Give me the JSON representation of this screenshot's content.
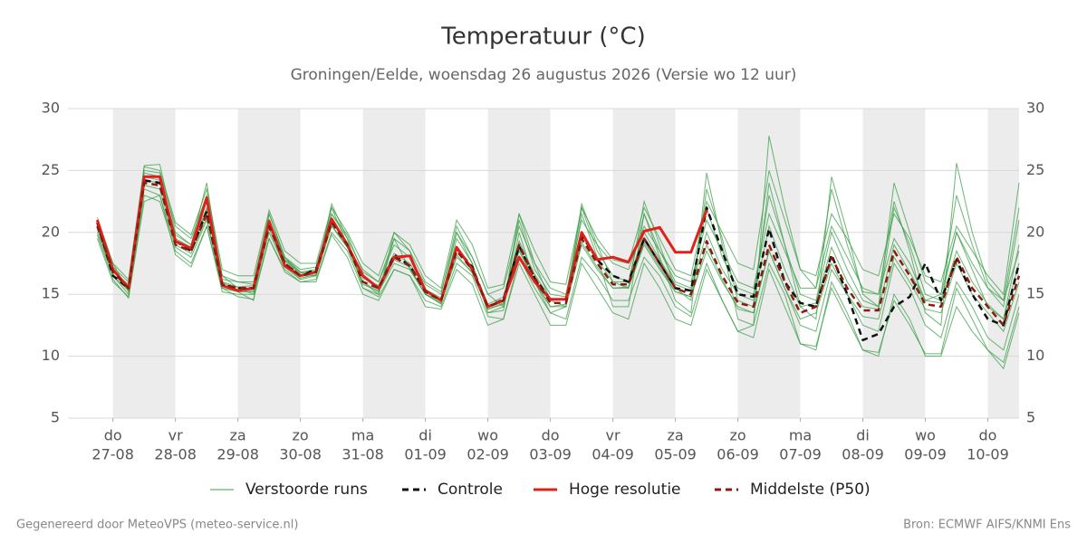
{
  "chart_data": {
    "type": "line",
    "title": "Temperatuur (°C)",
    "subtitle": "Groningen/Eelde, woensdag 26 augustus 2026 (Versie wo 12 uur)",
    "footer_left": "Gegenereerd door MeteoVPS (meteo-service.nl)",
    "footer_right": "Bron: ECMWF AIFS/KNMI Ens",
    "x": [
      -0.25,
      0,
      0.25,
      0.5,
      0.75,
      1,
      1.25,
      1.5,
      1.75,
      2,
      2.25,
      2.5,
      2.75,
      3,
      3.25,
      3.5,
      3.75,
      4,
      4.25,
      4.5,
      4.75,
      5,
      5.25,
      5.5,
      5.75,
      6,
      6.25,
      6.5,
      6.75,
      7,
      7.25,
      7.5,
      7.75,
      8,
      8.25,
      8.5,
      8.75,
      9,
      9.25,
      9.5,
      9.75,
      10,
      10.25,
      10.5,
      10.75,
      11,
      11.25,
      11.5,
      11.75,
      12,
      12.25,
      12.5,
      12.75,
      13,
      13.25,
      13.5,
      13.75,
      14,
      14.25,
      14.5
    ],
    "xlim": [
      -0.72,
      14.5
    ],
    "xticks": [
      {
        "value": 0,
        "label": "do",
        "sublabel": "27-08"
      },
      {
        "value": 1,
        "label": "vr",
        "sublabel": "28-08"
      },
      {
        "value": 2,
        "label": "za",
        "sublabel": "29-08"
      },
      {
        "value": 3,
        "label": "zo",
        "sublabel": "30-08"
      },
      {
        "value": 4,
        "label": "ma",
        "sublabel": "31-08"
      },
      {
        "value": 5,
        "label": "di",
        "sublabel": "01-09"
      },
      {
        "value": 6,
        "label": "wo",
        "sublabel": "02-09"
      },
      {
        "value": 7,
        "label": "do",
        "sublabel": "03-09"
      },
      {
        "value": 8,
        "label": "vr",
        "sublabel": "04-09"
      },
      {
        "value": 9,
        "label": "za",
        "sublabel": "05-09"
      },
      {
        "value": 10,
        "label": "zo",
        "sublabel": "06-09"
      },
      {
        "value": 11,
        "label": "ma",
        "sublabel": "07-09"
      },
      {
        "value": 12,
        "label": "di",
        "sublabel": "08-09"
      },
      {
        "value": 13,
        "label": "wo",
        "sublabel": "09-09"
      },
      {
        "value": 14,
        "label": "do",
        "sublabel": "10-09"
      }
    ],
    "ylim": [
      5,
      30
    ],
    "yticks": [
      5,
      10,
      15,
      20,
      25,
      30
    ],
    "grid": true,
    "day_shading": true,
    "ensemble": {
      "name": "Verstoorde runs",
      "color": "#3a9e46",
      "members": [
        [
          21.2,
          17.5,
          15.2,
          25.4,
          25.5,
          20,
          19,
          24,
          16,
          15.2,
          14.5,
          21.5,
          18,
          16.8,
          16.5,
          22.3,
          19.5,
          15.5,
          15,
          19.5,
          17,
          15,
          14.2,
          19.5,
          17.5,
          13.5,
          13.7,
          20,
          16,
          13.5,
          14,
          21.5,
          18,
          14,
          14,
          21.5,
          18,
          14.5,
          13.5,
          24.8,
          19,
          13,
          12.5,
          27.8,
          22,
          17,
          15.5,
          23.5,
          19,
          15.2,
          15,
          22.5,
          18.5,
          13.5,
          12.5,
          25.6,
          20,
          16,
          14.5,
          22
        ],
        [
          19.5,
          16,
          14.8,
          23,
          22.5,
          18.5,
          17.5,
          20.5,
          15.2,
          15,
          15,
          19.5,
          17,
          16,
          16.2,
          20,
          18.5,
          15.5,
          14.8,
          17,
          16.5,
          14.5,
          14,
          17.5,
          16.5,
          13.2,
          13,
          18,
          15.5,
          13.5,
          13,
          18,
          16.5,
          14.5,
          14.5,
          18,
          16.5,
          14,
          13.2,
          17.5,
          14.5,
          12,
          11.5,
          17,
          14,
          11,
          10.5,
          16,
          13.5,
          10.5,
          10,
          15,
          13,
          10,
          10,
          14,
          12,
          10.5,
          9,
          13.5
        ],
        [
          20.8,
          17,
          15.6,
          24.5,
          24.2,
          19.5,
          18.8,
          22,
          16.2,
          16,
          15.8,
          21,
          17.8,
          16.8,
          17,
          21.5,
          19.5,
          17,
          16,
          19,
          18,
          15.8,
          15,
          20.5,
          18,
          15,
          14,
          21,
          17,
          15,
          14.8,
          22,
          18.5,
          16.5,
          16,
          21.5,
          18.5,
          16,
          15.5,
          22,
          18,
          15.5,
          15,
          23,
          19,
          15,
          14.5,
          20,
          17,
          14.5,
          14,
          22,
          19,
          15,
          14.5,
          20,
          17,
          14,
          13,
          19
        ],
        [
          20,
          16.5,
          15,
          23.5,
          23,
          18.8,
          18,
          21,
          15.5,
          15.2,
          15.2,
          20,
          17.2,
          16.2,
          16.5,
          20.5,
          18.8,
          16,
          15.2,
          17.5,
          17,
          15,
          14.3,
          18,
          16.8,
          13.8,
          14.2,
          18.5,
          16,
          14,
          14,
          19,
          17,
          15.5,
          15.5,
          19,
          17,
          15.2,
          14.8,
          18.5,
          16,
          14,
          13.5,
          18.5,
          15.5,
          12.5,
          12,
          17,
          15,
          12.5,
          12,
          17.5,
          15.5,
          12.5,
          11.5,
          16,
          14,
          11.5,
          10.5,
          15
        ],
        [
          21,
          17.2,
          16,
          24.8,
          24.5,
          19.8,
          19,
          22.5,
          16.5,
          16,
          16,
          21.5,
          18,
          17,
          17.2,
          21.5,
          19.8,
          16.8,
          16,
          19.5,
          18.5,
          16,
          15.2,
          20,
          18,
          15,
          15.5,
          20.5,
          17.5,
          15.5,
          15,
          21,
          19,
          17.5,
          17,
          20.5,
          18.5,
          16.5,
          16,
          21,
          18.5,
          16,
          15.5,
          21.5,
          18.5,
          15.5,
          15.5,
          20.5,
          18,
          15.5,
          15,
          19.5,
          17.5,
          14.5,
          15,
          20,
          17.5,
          15.5,
          14.5,
          18.5
        ],
        [
          19.8,
          16.2,
          14.7,
          22.5,
          23,
          18.2,
          17.2,
          20.5,
          15.5,
          14.8,
          14.6,
          19.5,
          16.8,
          16,
          16,
          19.8,
          18,
          15,
          14.5,
          17,
          16.5,
          14,
          13.8,
          17,
          15.8,
          12.5,
          13,
          17.5,
          15,
          12.5,
          12.5,
          17.5,
          15.5,
          13.5,
          13,
          17.5,
          15.5,
          13,
          12.5,
          17,
          14.5,
          12,
          12.5,
          17.5,
          15,
          11,
          10.8,
          15.5,
          13,
          10.5,
          10.3,
          14.5,
          12.5,
          10.2,
          10.2,
          15.5,
          13,
          10.5,
          9.5,
          14
        ],
        [
          20.3,
          16.8,
          15.8,
          24.2,
          24,
          19.3,
          18.6,
          21.8,
          16,
          15.6,
          15.7,
          20.8,
          17.7,
          16.7,
          16.9,
          21,
          19.2,
          16.3,
          15.7,
          18.3,
          17.5,
          15.4,
          14.7,
          18.8,
          17.2,
          14.2,
          14.8,
          19.3,
          16.6,
          14.6,
          14.6,
          19.8,
          17.8,
          16,
          16,
          20,
          17.8,
          15.8,
          15.3,
          20,
          17,
          15,
          14.5,
          20.5,
          17,
          14,
          14.3,
          18.8,
          16,
          14,
          13.8,
          19,
          16.8,
          14.5,
          14.3,
          18.5,
          16,
          14.2,
          13,
          17.5
        ],
        [
          20.5,
          17,
          15.5,
          25,
          24.8,
          20.5,
          19.5,
          23,
          16.5,
          15.5,
          15,
          21,
          18,
          16.5,
          16.5,
          22,
          19,
          16,
          15,
          20,
          18.5,
          15,
          14.5,
          20,
          17.5,
          13.5,
          14,
          21.5,
          17.5,
          14.5,
          14,
          22.3,
          19,
          16,
          15.5,
          22.5,
          19,
          15.5,
          14.5,
          23.5,
          19.5,
          14.5,
          14,
          24,
          19,
          14,
          13,
          24.5,
          20,
          15,
          14,
          24,
          20,
          16,
          15,
          23,
          19,
          15.5,
          14,
          21
        ],
        [
          20.7,
          16.5,
          15.3,
          23.8,
          23.5,
          19,
          18.3,
          21.2,
          15.7,
          15.3,
          15.3,
          20.3,
          17.3,
          16.3,
          16.6,
          20.6,
          18.8,
          15.8,
          15.3,
          17.8,
          17.2,
          15,
          14.3,
          18.2,
          16.7,
          13.8,
          14.3,
          18.7,
          16,
          14,
          14.2,
          19.2,
          17.2,
          15.5,
          15.6,
          19.2,
          17.2,
          15.2,
          14.8,
          19,
          16.2,
          13.8,
          13.5,
          18.5,
          15.5,
          13,
          13.5,
          17.5,
          15,
          13.2,
          13,
          18,
          16,
          13.8,
          13.5,
          17.5,
          15,
          13.5,
          12,
          16
        ],
        [
          21,
          17.5,
          16.2,
          25.3,
          25,
          20.8,
          19.8,
          23.5,
          17,
          16.5,
          16.5,
          21.8,
          18.5,
          17.5,
          17.5,
          22,
          20,
          17.5,
          16.5,
          20,
          19,
          16.5,
          15.5,
          21,
          19,
          15.5,
          15.8,
          21.5,
          18.5,
          16,
          15.8,
          22,
          19.5,
          17.8,
          17.5,
          22,
          19.5,
          17,
          16.5,
          22.5,
          20,
          17.5,
          17,
          25,
          21,
          17,
          16.5,
          21.5,
          19.5,
          17,
          16.5,
          21.5,
          19.5,
          16.5,
          16,
          20.5,
          18.5,
          16.5,
          15,
          24
        ]
      ]
    },
    "series": [
      {
        "name": "Controle",
        "color": "#111111",
        "dashed": true,
        "values": [
          20.8,
          16.5,
          15.5,
          24.2,
          24,
          19.3,
          18.5,
          21.7,
          15.8,
          15.5,
          15.5,
          20.8,
          17.5,
          16.5,
          17,
          21,
          19,
          16.5,
          15.5,
          18.2,
          17.3,
          15.3,
          14.5,
          18.7,
          17.2,
          14,
          14.6,
          18.9,
          16.3,
          14.6,
          14.6,
          19.8,
          17.8,
          16.5,
          16,
          19.5,
          17.5,
          15.5,
          15.3,
          22,
          18.5,
          15,
          14.8,
          20.3,
          16,
          14.3,
          14,
          18.2,
          15,
          11.3,
          11.8,
          14,
          14.8,
          17.5,
          14.5,
          17.8,
          15,
          13,
          12.5,
          17.5
        ]
      },
      {
        "name": "Hoge resolutie",
        "color": "#e0201b",
        "dashed": false,
        "values": [
          21,
          17,
          15.5,
          24.5,
          24.5,
          19.3,
          18.7,
          22.8,
          15.7,
          15.3,
          15.5,
          20.9,
          17.3,
          16.5,
          16.8,
          21.1,
          19,
          16.5,
          15.5,
          18,
          18.1,
          15.3,
          14.5,
          18.8,
          17,
          14,
          14.5,
          18,
          16,
          14.6,
          14.6,
          20,
          17.8,
          18,
          17.6,
          20.1,
          20.4,
          18.4,
          18.4,
          21.8,
          null,
          null,
          null,
          null,
          null,
          null,
          null,
          null,
          null,
          null,
          null,
          null,
          null,
          null,
          null,
          null,
          null,
          null,
          null,
          null
        ]
      },
      {
        "name": "Middelste (P50)",
        "color": "#8b1a10",
        "dashed": true,
        "values": [
          20.5,
          16.8,
          15.5,
          24,
          23.8,
          19,
          18.5,
          21.5,
          15.8,
          15.5,
          15.5,
          20.5,
          17.5,
          16.5,
          16.8,
          20.8,
          19,
          16,
          15.5,
          18,
          17.3,
          15.2,
          14.5,
          18.5,
          17,
          14,
          14.5,
          19,
          16.3,
          14.3,
          14.3,
          19.5,
          17.5,
          15.8,
          15.8,
          19.5,
          17.5,
          15.5,
          15,
          19.3,
          16.5,
          14.3,
          14,
          19,
          16,
          13.5,
          14,
          18,
          15.5,
          13.7,
          13.7,
          18.5,
          16.5,
          14.2,
          14,
          18,
          15.5,
          14,
          12.5,
          16.5
        ]
      }
    ]
  }
}
